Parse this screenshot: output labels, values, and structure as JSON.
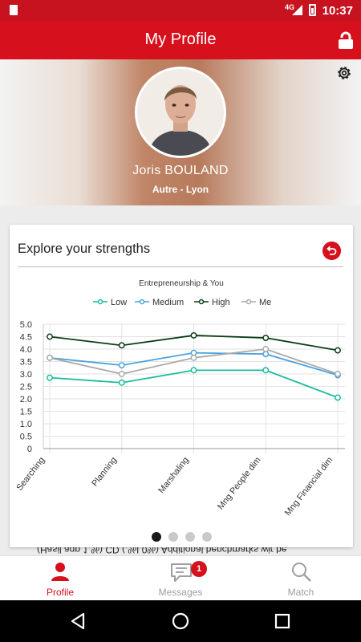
{
  "status_bar": {
    "network": "4G",
    "time": "10:37"
  },
  "app_bar": {
    "title": "My Profile"
  },
  "profile": {
    "name": "Joris BOULAND",
    "subtitle": "Autre - Lyon"
  },
  "card": {
    "title": "Explore your strengths"
  },
  "chart_data": {
    "type": "line",
    "title": "Entrepreneurship & You",
    "categories": [
      "Searching",
      "Planning",
      "Marshaling",
      "Mng People dim",
      "Mng Financial dim"
    ],
    "series": [
      {
        "name": "Low",
        "color": "#1abc9c",
        "values": [
          2.85,
          2.65,
          3.15,
          3.15,
          2.05
        ]
      },
      {
        "name": "Medium",
        "color": "#4aa3df",
        "values": [
          3.65,
          3.35,
          3.85,
          3.8,
          2.95
        ]
      },
      {
        "name": "High",
        "color": "#0b3d13",
        "values": [
          4.5,
          4.15,
          4.55,
          4.45,
          3.95
        ]
      },
      {
        "name": "Me",
        "color": "#aaaaaa",
        "values": [
          3.65,
          3.0,
          3.65,
          4.0,
          3.0
        ]
      }
    ],
    "yticks": [
      "0",
      "0.5",
      "1.0",
      "1.5",
      "2.0",
      "2.5",
      "3.0",
      "3.5",
      "4.0",
      "4.5",
      "5.0"
    ],
    "ylim": [
      0,
      5
    ],
    "grid": true,
    "legend": "top-center"
  },
  "pager": {
    "count": 4,
    "active_index": 0
  },
  "bleed_text": "(Hasil agp 1.%) CD (.%I,0%) Additional benchmarks wir be",
  "bottom_nav": {
    "items": [
      {
        "label": "Profile",
        "active": true
      },
      {
        "label": "Messages",
        "badge": "1"
      },
      {
        "label": "Match"
      }
    ]
  },
  "colors": {
    "accent": "#d6101c"
  }
}
